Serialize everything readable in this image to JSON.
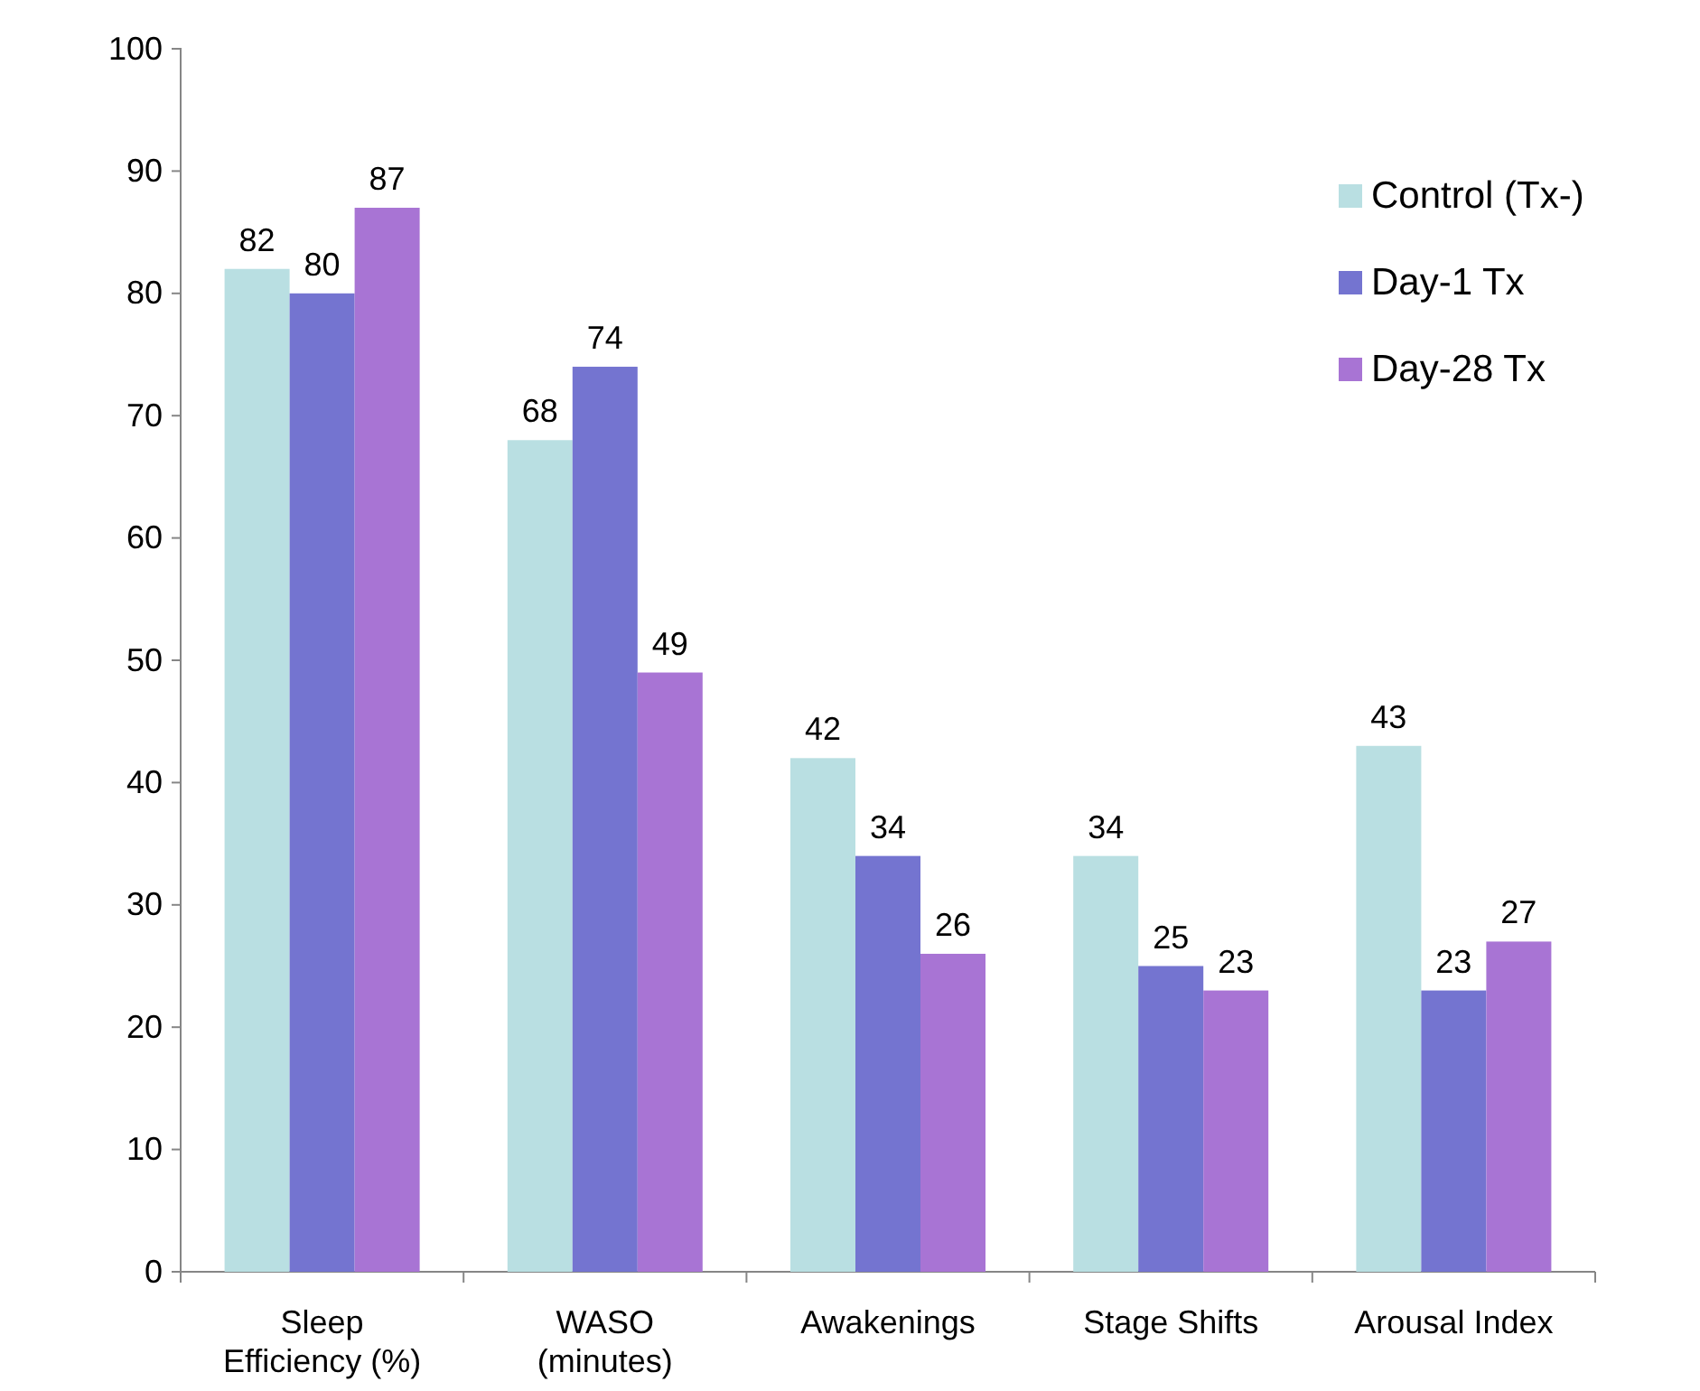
{
  "chart_data": {
    "type": "bar",
    "categories": [
      "Sleep Efficiency (%)",
      "WASO (minutes)",
      "Awakenings",
      "Stage Shifts",
      "Arousal Index"
    ],
    "series": [
      {
        "name": "Control (Tx-)",
        "color": "#b9dfe2",
        "values": [
          82,
          68,
          42,
          34,
          43
        ]
      },
      {
        "name": "Day-1 Tx",
        "color": "#7474d0",
        "values": [
          80,
          74,
          34,
          25,
          23
        ]
      },
      {
        "name": "Day-28 Tx",
        "color": "#a874d4",
        "values": [
          87,
          49,
          26,
          23,
          27
        ]
      }
    ],
    "ylim": [
      0,
      100
    ],
    "yticks": [
      0,
      10,
      20,
      30,
      40,
      50,
      60,
      70,
      80,
      90,
      100
    ],
    "data_labels": true,
    "legend": "top right"
  }
}
